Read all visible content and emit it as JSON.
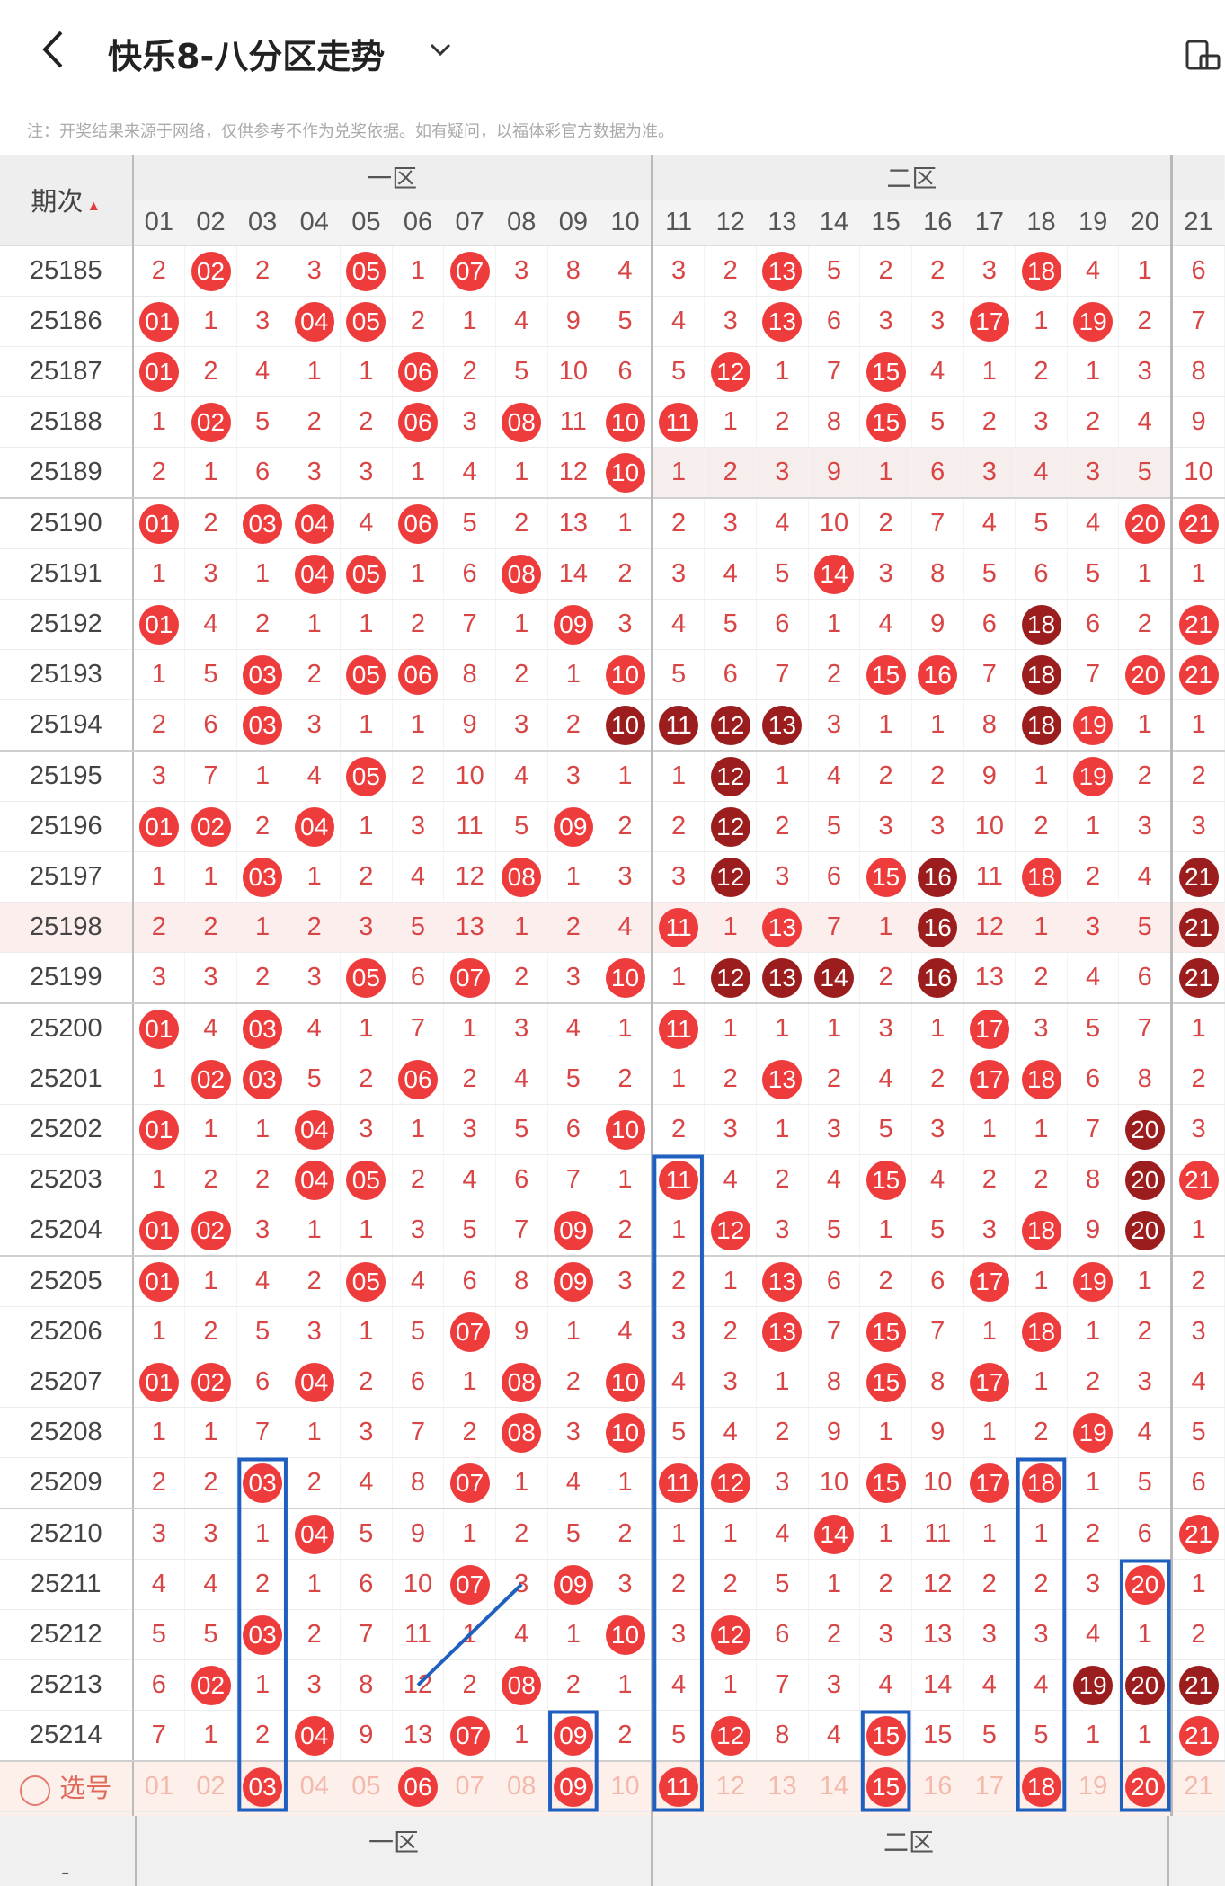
{
  "header": {
    "title": "快乐8-八分区走势"
  },
  "notice": "注：开奖结果来源于网络，仅供参考不作为兑奖依据。如有疑问，以福体彩官方数据为准。",
  "table": {
    "period_label": "期次",
    "zones": [
      "一区",
      "二区"
    ],
    "columns": [
      "01",
      "02",
      "03",
      "04",
      "05",
      "06",
      "07",
      "08",
      "09",
      "10",
      "11",
      "12",
      "13",
      "14",
      "15",
      "16",
      "17",
      "18",
      "19",
      "20",
      "21"
    ],
    "rows": [
      {
        "p": "25185",
        "c": [
          "2",
          "02",
          "2",
          "3",
          "05",
          "1",
          "07",
          "3",
          "8",
          "4",
          "3",
          "2",
          "13",
          "5",
          "2",
          "2",
          "3",
          "18",
          "4",
          "1",
          "6"
        ]
      },
      {
        "p": "25186",
        "c": [
          "01",
          "1",
          "3",
          "04",
          "05",
          "2",
          "1",
          "4",
          "9",
          "5",
          "4",
          "3",
          "13",
          "6",
          "3",
          "3",
          "17",
          "1",
          "19",
          "2",
          "7"
        ]
      },
      {
        "p": "25187",
        "c": [
          "01",
          "2",
          "4",
          "1",
          "1",
          "06",
          "2",
          "5",
          "10",
          "6",
          "5",
          "12",
          "1",
          "7",
          "15",
          "4",
          "1",
          "2",
          "1",
          "3",
          "8"
        ]
      },
      {
        "p": "25188",
        "c": [
          "1",
          "02",
          "5",
          "2",
          "2",
          "06",
          "3",
          "08",
          "11",
          "10",
          "11",
          "1",
          "2",
          "8",
          "15",
          "5",
          "2",
          "3",
          "2",
          "4",
          "9"
        ]
      },
      {
        "p": "25189",
        "c": [
          "2",
          "1",
          "6",
          "3",
          "3",
          "1",
          "4",
          "1",
          "12",
          "10",
          "1",
          "2",
          "3",
          "9",
          "1",
          "6",
          "3",
          "4",
          "3",
          "5",
          "10"
        ]
      },
      {
        "p": "25190",
        "c": [
          "01",
          "2",
          "03",
          "04",
          "4",
          "06",
          "5",
          "2",
          "13",
          "1",
          "2",
          "3",
          "4",
          "10",
          "2",
          "7",
          "4",
          "5",
          "4",
          "20",
          "21"
        ]
      },
      {
        "p": "25191",
        "c": [
          "1",
          "3",
          "1",
          "04",
          "05",
          "1",
          "6",
          "08",
          "14",
          "2",
          "3",
          "4",
          "5",
          "14",
          "3",
          "8",
          "5",
          "6",
          "5",
          "1",
          "1"
        ]
      },
      {
        "p": "25192",
        "c": [
          "01",
          "4",
          "2",
          "1",
          "1",
          "2",
          "7",
          "1",
          "09",
          "3",
          "4",
          "5",
          "6",
          "1",
          "4",
          "9",
          "6",
          "18",
          "6",
          "2",
          "21"
        ]
      },
      {
        "p": "25193",
        "c": [
          "1",
          "5",
          "03",
          "2",
          "05",
          "06",
          "8",
          "2",
          "1",
          "10",
          "5",
          "6",
          "7",
          "2",
          "15",
          "16",
          "7",
          "18",
          "7",
          "20",
          "21"
        ]
      },
      {
        "p": "25194",
        "c": [
          "2",
          "6",
          "03",
          "3",
          "1",
          "1",
          "9",
          "3",
          "2",
          "10",
          "11",
          "12",
          "13",
          "3",
          "1",
          "1",
          "8",
          "18",
          "19",
          "1",
          "1"
        ]
      },
      {
        "p": "25195",
        "c": [
          "3",
          "7",
          "1",
          "4",
          "05",
          "2",
          "10",
          "4",
          "3",
          "1",
          "1",
          "12",
          "1",
          "4",
          "2",
          "2",
          "9",
          "1",
          "19",
          "2",
          "2"
        ]
      },
      {
        "p": "25196",
        "c": [
          "01",
          "02",
          "2",
          "04",
          "1",
          "3",
          "11",
          "5",
          "09",
          "2",
          "2",
          "12",
          "2",
          "5",
          "3",
          "3",
          "10",
          "2",
          "1",
          "3",
          "3"
        ]
      },
      {
        "p": "25197",
        "c": [
          "1",
          "1",
          "03",
          "1",
          "2",
          "4",
          "12",
          "08",
          "1",
          "3",
          "3",
          "12",
          "3",
          "6",
          "15",
          "16",
          "11",
          "18",
          "2",
          "4",
          "21"
        ]
      },
      {
        "p": "25198",
        "c": [
          "2",
          "2",
          "1",
          "2",
          "3",
          "5",
          "13",
          "1",
          "2",
          "4",
          "11",
          "1",
          "13",
          "7",
          "1",
          "16",
          "12",
          "1",
          "3",
          "5",
          "21"
        ]
      },
      {
        "p": "25199",
        "c": [
          "3",
          "3",
          "2",
          "3",
          "05",
          "6",
          "07",
          "2",
          "3",
          "10",
          "1",
          "12",
          "13",
          "14",
          "2",
          "16",
          "13",
          "2",
          "4",
          "6",
          "21"
        ]
      },
      {
        "p": "25200",
        "c": [
          "01",
          "4",
          "03",
          "4",
          "1",
          "7",
          "1",
          "3",
          "4",
          "1",
          "11",
          "1",
          "1",
          "1",
          "3",
          "1",
          "17",
          "3",
          "5",
          "7",
          "1"
        ]
      },
      {
        "p": "25201",
        "c": [
          "1",
          "02",
          "03",
          "5",
          "2",
          "06",
          "2",
          "4",
          "5",
          "2",
          "1",
          "2",
          "13",
          "2",
          "4",
          "2",
          "17",
          "18",
          "6",
          "8",
          "2"
        ]
      },
      {
        "p": "25202",
        "c": [
          "01",
          "1",
          "1",
          "04",
          "3",
          "1",
          "3",
          "5",
          "6",
          "10",
          "2",
          "3",
          "1",
          "3",
          "5",
          "3",
          "1",
          "1",
          "7",
          "20",
          "3"
        ]
      },
      {
        "p": "25203",
        "c": [
          "1",
          "2",
          "2",
          "04",
          "05",
          "2",
          "4",
          "6",
          "7",
          "1",
          "11",
          "4",
          "2",
          "4",
          "15",
          "4",
          "2",
          "2",
          "8",
          "20",
          "21"
        ]
      },
      {
        "p": "25204",
        "c": [
          "01",
          "02",
          "3",
          "1",
          "1",
          "3",
          "5",
          "7",
          "09",
          "2",
          "1",
          "12",
          "3",
          "5",
          "1",
          "5",
          "3",
          "18",
          "9",
          "20",
          "1"
        ]
      },
      {
        "p": "25205",
        "c": [
          "01",
          "1",
          "4",
          "2",
          "05",
          "4",
          "6",
          "8",
          "09",
          "3",
          "2",
          "1",
          "13",
          "6",
          "2",
          "6",
          "17",
          "1",
          "19",
          "1",
          "2"
        ]
      },
      {
        "p": "25206",
        "c": [
          "1",
          "2",
          "5",
          "3",
          "1",
          "5",
          "07",
          "9",
          "1",
          "4",
          "3",
          "2",
          "13",
          "7",
          "15",
          "7",
          "1",
          "18",
          "1",
          "2",
          "3"
        ]
      },
      {
        "p": "25207",
        "c": [
          "01",
          "02",
          "6",
          "04",
          "2",
          "6",
          "1",
          "08",
          "2",
          "10",
          "4",
          "3",
          "1",
          "8",
          "15",
          "8",
          "17",
          "1",
          "2",
          "3",
          "4"
        ]
      },
      {
        "p": "25208",
        "c": [
          "1",
          "1",
          "7",
          "1",
          "3",
          "7",
          "2",
          "08",
          "3",
          "10",
          "5",
          "4",
          "2",
          "9",
          "1",
          "9",
          "1",
          "2",
          "19",
          "4",
          "5"
        ]
      },
      {
        "p": "25209",
        "c": [
          "2",
          "2",
          "03",
          "2",
          "4",
          "8",
          "07",
          "1",
          "4",
          "1",
          "11",
          "12",
          "3",
          "10",
          "15",
          "10",
          "17",
          "18",
          "1",
          "5",
          "6"
        ]
      },
      {
        "p": "25210",
        "c": [
          "3",
          "3",
          "1",
          "04",
          "5",
          "9",
          "1",
          "2",
          "5",
          "2",
          "1",
          "1",
          "4",
          "14",
          "1",
          "11",
          "1",
          "1",
          "2",
          "6",
          "21"
        ]
      },
      {
        "p": "25211",
        "c": [
          "4",
          "4",
          "2",
          "1",
          "6",
          "10",
          "07",
          "3",
          "09",
          "3",
          "2",
          "2",
          "5",
          "1",
          "2",
          "12",
          "2",
          "2",
          "3",
          "20",
          "1"
        ]
      },
      {
        "p": "25212",
        "c": [
          "5",
          "5",
          "03",
          "2",
          "7",
          "11",
          "1",
          "4",
          "1",
          "10",
          "3",
          "12",
          "6",
          "2",
          "3",
          "13",
          "3",
          "3",
          "4",
          "1",
          "2"
        ]
      },
      {
        "p": "25213",
        "c": [
          "6",
          "02",
          "1",
          "3",
          "8",
          "12",
          "2",
          "08",
          "2",
          "1",
          "4",
          "1",
          "7",
          "3",
          "4",
          "14",
          "4",
          "4",
          "19",
          "20",
          "21"
        ]
      },
      {
        "p": "25214",
        "c": [
          "7",
          "1",
          "2",
          "04",
          "9",
          "13",
          "07",
          "1",
          "09",
          "2",
          "5",
          "12",
          "8",
          "4",
          "15",
          "15",
          "5",
          "5",
          "1",
          "1",
          "21"
        ]
      }
    ],
    "select_rows": [
      {
        "label": "选号",
        "c": [
          "01",
          "02",
          "03",
          "04",
          "05",
          "06",
          "07",
          "08",
          "09",
          "10",
          "11",
          "12",
          "13",
          "14",
          "15",
          "16",
          "17",
          "18",
          "19",
          "20",
          "21"
        ]
      },
      {
        "label": "选号",
        "c": [
          "01",
          "02",
          "03",
          "04",
          "05",
          "06",
          "07",
          "08",
          "09",
          "10",
          "11",
          "12",
          "13",
          "14",
          "15",
          "16",
          "17",
          "18",
          "19",
          "20",
          "21"
        ]
      }
    ],
    "footer_label": "-"
  }
}
